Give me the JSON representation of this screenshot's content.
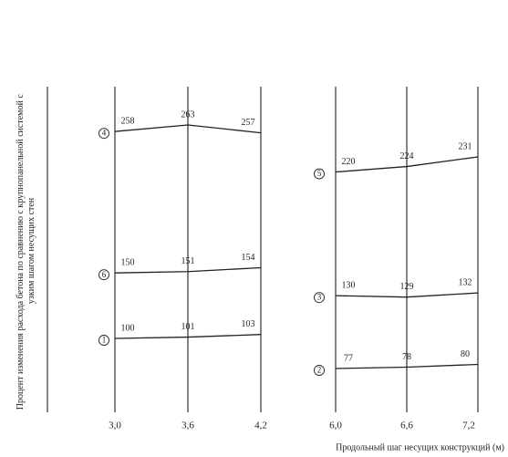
{
  "chart_data": [
    {
      "type": "line",
      "ylabel": [
        "Процент изменения расхода бетона по сравнению с крупнопанельной системой с",
        "узким шагом несущих стен"
      ],
      "x": [
        3.0,
        3.6,
        4.2
      ],
      "xlim": [
        3.0,
        4.2
      ],
      "xticks": [
        {
          "value": 3.0,
          "label": "3,0"
        },
        {
          "value": 3.6,
          "label": "3,6"
        },
        {
          "value": 4.2,
          "label": "4,2"
        }
      ],
      "series": [
        {
          "name": "4",
          "color": "#222222",
          "values": [
            258,
            263,
            257
          ]
        },
        {
          "name": "6",
          "color": "#222222",
          "values": [
            150,
            151,
            154
          ]
        },
        {
          "name": "1",
          "color": "#222222",
          "values": [
            100,
            101,
            103
          ]
        }
      ]
    },
    {
      "type": "line",
      "xlabel": "Продольный шаг несущих конструкций (м)",
      "x": [
        6.0,
        6.6,
        7.2
      ],
      "xlim": [
        6.0,
        7.2
      ],
      "xticks": [
        {
          "value": 6.0,
          "label": "6,0"
        },
        {
          "value": 6.6,
          "label": "6,6"
        },
        {
          "value": 7.2,
          "label": "7,2"
        }
      ],
      "series": [
        {
          "name": "5",
          "color": "#222222",
          "values": [
            220,
            224,
            231
          ]
        },
        {
          "name": "3",
          "color": "#222222",
          "values": [
            130,
            129,
            132
          ]
        },
        {
          "name": "2",
          "color": "#222222",
          "values": [
            77,
            78,
            80
          ]
        }
      ]
    }
  ]
}
